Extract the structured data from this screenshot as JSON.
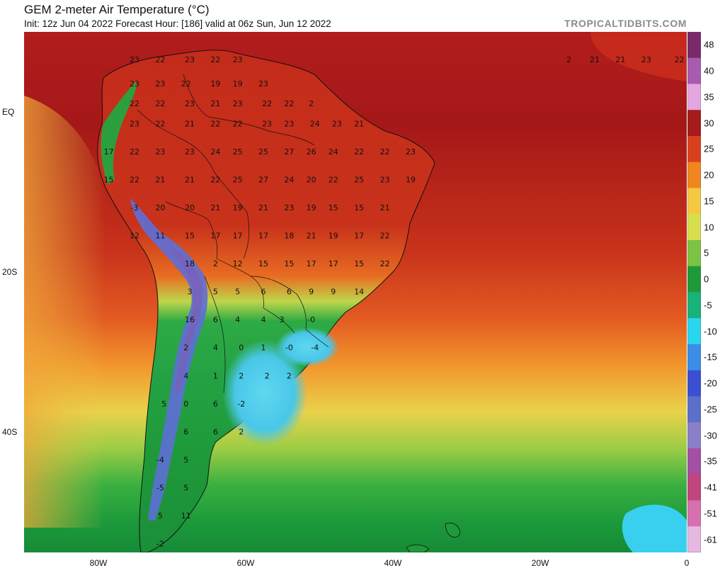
{
  "header": {
    "title": "GEM 2-meter Air Temperature (°C)",
    "subtitle": "Init: 12z Jun 04 2022   Forecast Hour: [186]   valid at 06z Sun, Jun 12 2022",
    "brand": "TROPICALTIDBITS.COM"
  },
  "axes": {
    "lon_labels": [
      "80W",
      "60W",
      "40W",
      "20W",
      "0"
    ],
    "lat_labels": [
      "EQ",
      "20S",
      "40S"
    ]
  },
  "colorbar": {
    "labels": [
      "48",
      "40",
      "35",
      "30",
      "25",
      "20",
      "15",
      "10",
      "5",
      "0",
      "-5",
      "-10",
      "-15",
      "-20",
      "-25",
      "-30",
      "-35",
      "-41",
      "-51",
      "-61"
    ],
    "stops": [
      "#7a2a6a",
      "#a85bb0",
      "#e3a6e0",
      "#a61a1a",
      "#d9411e",
      "#f0861f",
      "#f5c842",
      "#d8df4e",
      "#7cc344",
      "#1f9a3a",
      "#18b27a",
      "#29d6f0",
      "#3a8ee8",
      "#3b4fd1",
      "#5c6fc9",
      "#8a80c8",
      "#a44fa3",
      "#c0467d",
      "#d770b0",
      "#e6b8e0"
    ],
    "unit": "°C"
  },
  "map_values": [
    {
      "t": "23",
      "lat": 6,
      "lon": -75
    },
    {
      "t": "22",
      "lat": 6,
      "lon": -71.5
    },
    {
      "t": "23",
      "lat": 6,
      "lon": -67.5
    },
    {
      "t": "22",
      "lat": 6,
      "lon": -64
    },
    {
      "t": "23",
      "lat": 6,
      "lon": -61
    },
    {
      "t": "23",
      "lat": 3,
      "lon": -75
    },
    {
      "t": "23",
      "lat": 3,
      "lon": -71.5
    },
    {
      "t": "22",
      "lat": 3,
      "lon": -68
    },
    {
      "t": "19",
      "lat": 3,
      "lon": -64
    },
    {
      "t": "19",
      "lat": 3,
      "lon": -61
    },
    {
      "t": "23",
      "lat": 3,
      "lon": -57.5
    },
    {
      "t": "22",
      "lat": 0.5,
      "lon": -75
    },
    {
      "t": "22",
      "lat": 0.5,
      "lon": -71.5
    },
    {
      "t": "23",
      "lat": 0.5,
      "lon": -67.5
    },
    {
      "t": "21",
      "lat": 0.5,
      "lon": -64
    },
    {
      "t": "23",
      "lat": 0.5,
      "lon": -61
    },
    {
      "t": "22",
      "lat": 0.5,
      "lon": -57
    },
    {
      "t": "22",
      "lat": 0.5,
      "lon": -54
    },
    {
      "t": "2",
      "lat": 0.5,
      "lon": -51
    },
    {
      "t": "23",
      "lat": -2,
      "lon": -75
    },
    {
      "t": "22",
      "lat": -2,
      "lon": -71.5
    },
    {
      "t": "21",
      "lat": -2,
      "lon": -67.5
    },
    {
      "t": "22",
      "lat": -2,
      "lon": -64
    },
    {
      "t": "22",
      "lat": -2,
      "lon": -61
    },
    {
      "t": "23",
      "lat": -2,
      "lon": -57
    },
    {
      "t": "23",
      "lat": -2,
      "lon": -54
    },
    {
      "t": "24",
      "lat": -2,
      "lon": -50.5
    },
    {
      "t": "23",
      "lat": -2,
      "lon": -47.5
    },
    {
      "t": "21",
      "lat": -2,
      "lon": -44.5
    },
    {
      "t": "17",
      "lat": -5.5,
      "lon": -78.5
    },
    {
      "t": "22",
      "lat": -5.5,
      "lon": -75
    },
    {
      "t": "23",
      "lat": -5.5,
      "lon": -71.5
    },
    {
      "t": "23",
      "lat": -5.5,
      "lon": -67.5
    },
    {
      "t": "24",
      "lat": -5.5,
      "lon": -64
    },
    {
      "t": "25",
      "lat": -5.5,
      "lon": -61
    },
    {
      "t": "25",
      "lat": -5.5,
      "lon": -57.5
    },
    {
      "t": "27",
      "lat": -5.5,
      "lon": -54
    },
    {
      "t": "26",
      "lat": -5.5,
      "lon": -51
    },
    {
      "t": "24",
      "lat": -5.5,
      "lon": -48
    },
    {
      "t": "22",
      "lat": -5.5,
      "lon": -44.5
    },
    {
      "t": "22",
      "lat": -5.5,
      "lon": -41
    },
    {
      "t": "23",
      "lat": -5.5,
      "lon": -37.5
    },
    {
      "t": "15",
      "lat": -9,
      "lon": -78.5
    },
    {
      "t": "22",
      "lat": -9,
      "lon": -75
    },
    {
      "t": "21",
      "lat": -9,
      "lon": -71.5
    },
    {
      "t": "21",
      "lat": -9,
      "lon": -67.5
    },
    {
      "t": "22",
      "lat": -9,
      "lon": -64
    },
    {
      "t": "25",
      "lat": -9,
      "lon": -61
    },
    {
      "t": "27",
      "lat": -9,
      "lon": -57.5
    },
    {
      "t": "24",
      "lat": -9,
      "lon": -54
    },
    {
      "t": "20",
      "lat": -9,
      "lon": -51
    },
    {
      "t": "22",
      "lat": -9,
      "lon": -48
    },
    {
      "t": "25",
      "lat": -9,
      "lon": -44.5
    },
    {
      "t": "23",
      "lat": -9,
      "lon": -41
    },
    {
      "t": "19",
      "lat": -9,
      "lon": -37.5
    },
    {
      "t": "-3",
      "lat": -12.5,
      "lon": -75
    },
    {
      "t": "20",
      "lat": -12.5,
      "lon": -71.5
    },
    {
      "t": "20",
      "lat": -12.5,
      "lon": -67.5
    },
    {
      "t": "21",
      "lat": -12.5,
      "lon": -64
    },
    {
      "t": "19",
      "lat": -12.5,
      "lon": -61
    },
    {
      "t": "21",
      "lat": -12.5,
      "lon": -57.5
    },
    {
      "t": "23",
      "lat": -12.5,
      "lon": -54
    },
    {
      "t": "19",
      "lat": -12.5,
      "lon": -51
    },
    {
      "t": "15",
      "lat": -12.5,
      "lon": -48
    },
    {
      "t": "15",
      "lat": -12.5,
      "lon": -44.5
    },
    {
      "t": "21",
      "lat": -12.5,
      "lon": -41
    },
    {
      "t": "12",
      "lat": -16,
      "lon": -75
    },
    {
      "t": "11",
      "lat": -16,
      "lon": -71.5
    },
    {
      "t": "15",
      "lat": -16,
      "lon": -67.5
    },
    {
      "t": "17",
      "lat": -16,
      "lon": -64
    },
    {
      "t": "17",
      "lat": -16,
      "lon": -61
    },
    {
      "t": "17",
      "lat": -16,
      "lon": -57.5
    },
    {
      "t": "18",
      "lat": -16,
      "lon": -54
    },
    {
      "t": "21",
      "lat": -16,
      "lon": -51
    },
    {
      "t": "19",
      "lat": -16,
      "lon": -48
    },
    {
      "t": "17",
      "lat": -16,
      "lon": -44.5
    },
    {
      "t": "22",
      "lat": -16,
      "lon": -41
    },
    {
      "t": "18",
      "lat": -19.5,
      "lon": -67.5
    },
    {
      "t": "2",
      "lat": -19.5,
      "lon": -64
    },
    {
      "t": "12",
      "lat": -19.5,
      "lon": -61
    },
    {
      "t": "15",
      "lat": -19.5,
      "lon": -57.5
    },
    {
      "t": "15",
      "lat": -19.5,
      "lon": -54
    },
    {
      "t": "17",
      "lat": -19.5,
      "lon": -51
    },
    {
      "t": "17",
      "lat": -19.5,
      "lon": -48
    },
    {
      "t": "15",
      "lat": -19.5,
      "lon": -44.5
    },
    {
      "t": "22",
      "lat": -19.5,
      "lon": -41
    },
    {
      "t": "3",
      "lat": -23,
      "lon": -67.5
    },
    {
      "t": "5",
      "lat": -23,
      "lon": -64
    },
    {
      "t": "5",
      "lat": -23,
      "lon": -61
    },
    {
      "t": "6",
      "lat": -23,
      "lon": -57.5
    },
    {
      "t": "6",
      "lat": -23,
      "lon": -54
    },
    {
      "t": "9",
      "lat": -23,
      "lon": -51
    },
    {
      "t": "9",
      "lat": -23,
      "lon": -48
    },
    {
      "t": "14",
      "lat": -23,
      "lon": -44.5
    },
    {
      "t": "16",
      "lat": -26.5,
      "lon": -67.5
    },
    {
      "t": "6",
      "lat": -26.5,
      "lon": -64
    },
    {
      "t": "4",
      "lat": -26.5,
      "lon": -61
    },
    {
      "t": "4",
      "lat": -26.5,
      "lon": -57.5
    },
    {
      "t": "3",
      "lat": -26.5,
      "lon": -55
    },
    {
      "t": "-0",
      "lat": -26.5,
      "lon": -51
    },
    {
      "t": "2",
      "lat": -30,
      "lon": -68
    },
    {
      "t": "4",
      "lat": -30,
      "lon": -64
    },
    {
      "t": "0",
      "lat": -30,
      "lon": -60.5
    },
    {
      "t": "1",
      "lat": -30,
      "lon": -57.5
    },
    {
      "t": "-0",
      "lat": -30,
      "lon": -54
    },
    {
      "t": "-4",
      "lat": -30,
      "lon": -50.5
    },
    {
      "t": "4",
      "lat": -33.5,
      "lon": -68
    },
    {
      "t": "1",
      "lat": -33.5,
      "lon": -64
    },
    {
      "t": "2",
      "lat": -33.5,
      "lon": -60.5
    },
    {
      "t": "2",
      "lat": -33.5,
      "lon": -57
    },
    {
      "t": "2",
      "lat": -33.5,
      "lon": -54
    },
    {
      "t": "5",
      "lat": -37,
      "lon": -71
    },
    {
      "t": "0",
      "lat": -37,
      "lon": -68
    },
    {
      "t": "6",
      "lat": -37,
      "lon": -64
    },
    {
      "t": "-2",
      "lat": -37,
      "lon": -60.5
    },
    {
      "t": "6",
      "lat": -40.5,
      "lon": -68
    },
    {
      "t": "6",
      "lat": -40.5,
      "lon": -64
    },
    {
      "t": "2",
      "lat": -40.5,
      "lon": -60.5
    },
    {
      "t": "-4",
      "lat": -44,
      "lon": -71.5
    },
    {
      "t": "5",
      "lat": -44,
      "lon": -68
    },
    {
      "t": "-5",
      "lat": -47.5,
      "lon": -71.5
    },
    {
      "t": "5",
      "lat": -47.5,
      "lon": -68
    },
    {
      "t": "5",
      "lat": -51,
      "lon": -71.5
    },
    {
      "t": "11",
      "lat": -51,
      "lon": -68
    },
    {
      "t": "-2",
      "lat": -54.5,
      "lon": -71.5
    },
    {
      "t": "2",
      "lat": 6,
      "lon": -16
    },
    {
      "t": "21",
      "lat": 6,
      "lon": -12.5
    },
    {
      "t": "21",
      "lat": 6,
      "lon": -9
    },
    {
      "t": "23",
      "lat": 6,
      "lon": -5.5
    },
    {
      "t": "22",
      "lat": 6,
      "lon": -1
    }
  ]
}
